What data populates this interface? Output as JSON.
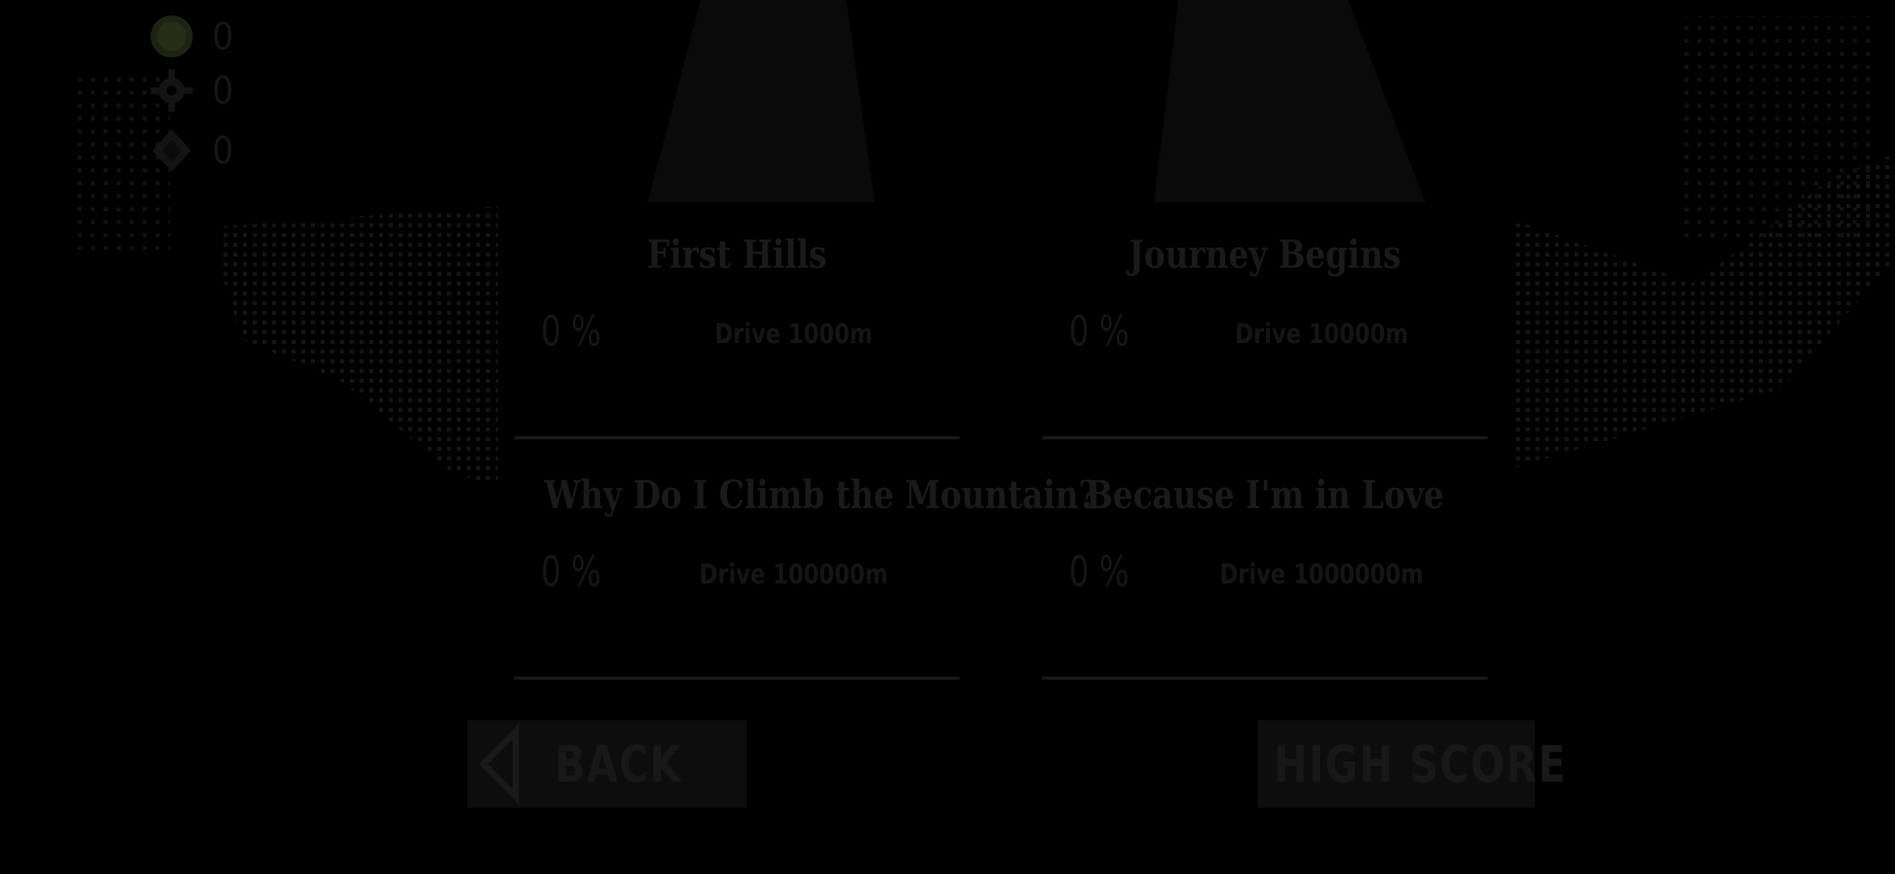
{
  "currencies": [
    {
      "name": "coin",
      "icon": "coin-icon",
      "count": "0"
    },
    {
      "name": "gear",
      "icon": "gear-icon",
      "count": "0"
    },
    {
      "name": "gem",
      "icon": "gem-icon",
      "count": "0"
    }
  ],
  "achievements": [
    {
      "title": "First Hills",
      "progress": "0 %",
      "goal": "Drive 1000m"
    },
    {
      "title": "Journey Begins",
      "progress": "0 %",
      "goal": "Drive 10000m"
    },
    {
      "title": "Why Do I Climb the Mountain?",
      "progress": "0 %",
      "goal": "Drive 100000m"
    },
    {
      "title": "Because I'm in Love",
      "progress": "0 %",
      "goal": "Drive 1000000m"
    }
  ],
  "buttons": {
    "back": "BACK",
    "highscore": "HIGH SCORE"
  },
  "colors": {
    "background": "#000000",
    "dim_text": "#181818",
    "dim_panel": "#0d0d0d"
  }
}
